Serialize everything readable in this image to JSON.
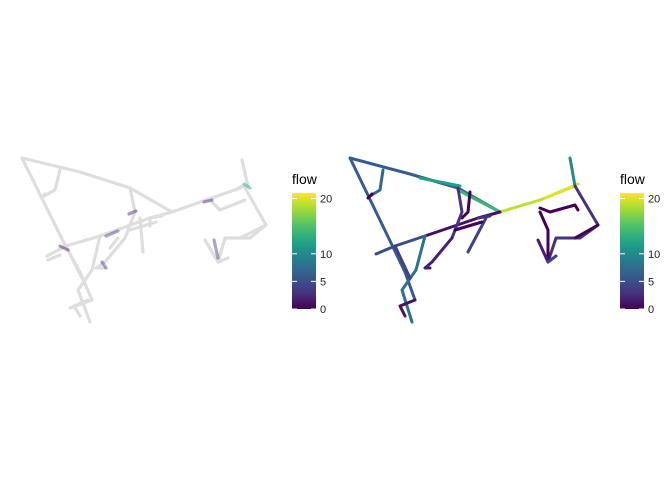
{
  "chart_data": [
    {
      "type": "network-map",
      "panel": "left",
      "description_ref": "road network, faint segments with sparse flow highlights",
      "legend": {
        "title": "flow",
        "ticks": [
          0,
          5,
          10,
          20
        ],
        "range": [
          0,
          21
        ],
        "colormap": "viridis"
      },
      "segments": [
        {
          "id": "L1",
          "flow": 0
        },
        {
          "id": "L2",
          "flow": 0
        },
        {
          "id": "L3",
          "flow": 0
        },
        {
          "id": "L4",
          "flow": 0
        },
        {
          "id": "L5",
          "flow": 0
        },
        {
          "id": "L6",
          "flow": 0
        },
        {
          "id": "L7",
          "flow": 0
        },
        {
          "id": "L8",
          "flow": 0
        },
        {
          "id": "L9",
          "flow": 0
        },
        {
          "id": "L10",
          "flow": 0
        },
        {
          "id": "L11",
          "flow": 0
        },
        {
          "id": "L12",
          "flow": 0
        },
        {
          "id": "L13",
          "flow": 0
        },
        {
          "id": "L14",
          "flow": 0
        },
        {
          "id": "L15",
          "flow": 0
        },
        {
          "id": "L16",
          "flow": 0
        },
        {
          "id": "L17",
          "flow": 0
        },
        {
          "id": "L18",
          "flow": 0
        },
        {
          "id": "L19",
          "flow": 0
        },
        {
          "id": "L20",
          "flow": 0
        },
        {
          "id": "L21",
          "flow": 0
        },
        {
          "id": "L22",
          "flow": 0
        },
        {
          "id": "L23",
          "flow": 0
        },
        {
          "id": "L24",
          "flow": 0
        },
        {
          "id": "L25",
          "flow": 0
        },
        {
          "id": "L26",
          "flow": 0
        }
      ],
      "highlights": [
        {
          "id": "H1",
          "flow": 4
        },
        {
          "id": "H2",
          "flow": 3
        },
        {
          "id": "H3",
          "flow": 2
        },
        {
          "id": "H4",
          "flow": 3
        },
        {
          "id": "H5",
          "flow": 2
        },
        {
          "id": "H6",
          "flow": 1
        },
        {
          "id": "H7",
          "flow": 12
        }
      ]
    },
    {
      "type": "network-map",
      "panel": "right",
      "legend": {
        "title": "flow",
        "ticks": [
          0,
          5,
          10,
          20
        ],
        "range": [
          0,
          21
        ],
        "colormap": "viridis"
      },
      "segments": [
        {
          "id": "R1",
          "flow": 6
        },
        {
          "id": "R2",
          "flow": 6
        },
        {
          "id": "R3",
          "flow": 7
        },
        {
          "id": "R4",
          "flow": 12
        },
        {
          "id": "R5",
          "flow": 14
        },
        {
          "id": "R6",
          "flow": 19
        },
        {
          "id": "R7",
          "flow": 20
        },
        {
          "id": "R8",
          "flow": 10
        },
        {
          "id": "R9",
          "flow": 3
        },
        {
          "id": "R10",
          "flow": 0
        },
        {
          "id": "R11",
          "flow": 0
        },
        {
          "id": "R12",
          "flow": 1
        },
        {
          "id": "R13",
          "flow": 0
        },
        {
          "id": "R14",
          "flow": 5
        },
        {
          "id": "R15",
          "flow": 8
        },
        {
          "id": "R16",
          "flow": 4
        },
        {
          "id": "R17",
          "flow": 3
        },
        {
          "id": "R18",
          "flow": 2
        },
        {
          "id": "R19",
          "flow": 4
        },
        {
          "id": "R20",
          "flow": 0
        },
        {
          "id": "R21",
          "flow": 1
        },
        {
          "id": "R22",
          "flow": 3
        },
        {
          "id": "R23",
          "flow": 0
        },
        {
          "id": "R24",
          "flow": 2
        },
        {
          "id": "R25",
          "flow": 4
        },
        {
          "id": "R26",
          "flow": 0
        }
      ]
    }
  ]
}
